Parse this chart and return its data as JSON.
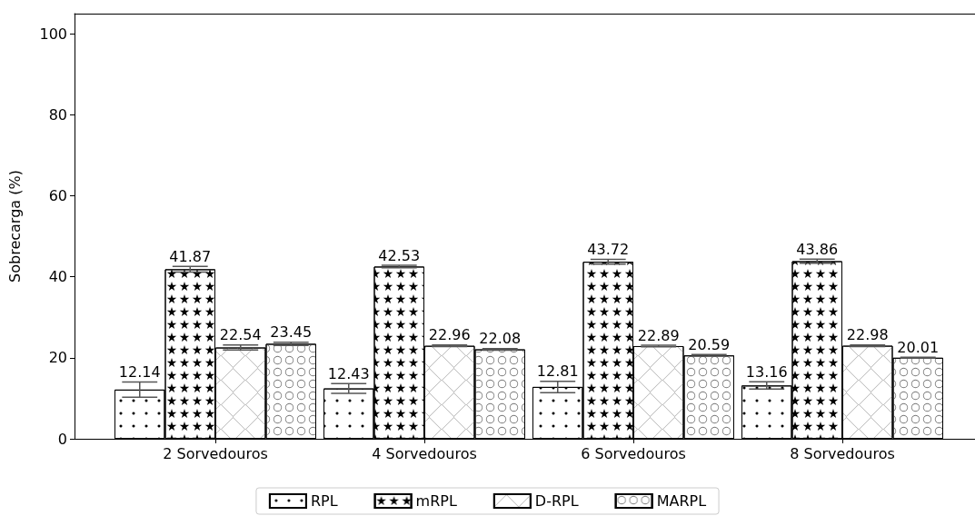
{
  "chart_data": {
    "type": "bar",
    "ylabel": "Sobrecarga (%)",
    "categories": [
      "2 Sorvedouros",
      "4 Sorvedouros",
      "6 Sorvedouros",
      "8 Sorvedouros"
    ],
    "series": [
      {
        "name": "RPL",
        "color": "#ffffff",
        "values": [
          12.14,
          12.43,
          12.81,
          13.16
        ],
        "errors": [
          1.9,
          1.2,
          1.4,
          0.9
        ]
      },
      {
        "name": "mRPL",
        "color": "#ffffff",
        "values": [
          41.87,
          42.53,
          43.72,
          43.86
        ],
        "errors": [
          0.7,
          0.3,
          0.6,
          0.5
        ]
      },
      {
        "name": "D-RPL",
        "color": "#ffffff",
        "values": [
          22.54,
          22.96,
          22.89,
          22.98
        ],
        "errors": [
          0.6,
          0.2,
          0.2,
          0.2
        ]
      },
      {
        "name": "MARPL",
        "color": "#ffffff",
        "values": [
          23.45,
          22.08,
          20.59,
          20.01
        ],
        "errors": [
          0.4,
          0.2,
          0.2,
          0.1
        ]
      }
    ],
    "ylim": [
      0,
      105
    ],
    "yticks": [
      0,
      20,
      40,
      60,
      80,
      100
    ],
    "data_labels": true,
    "grid": false,
    "legend": "bottom"
  }
}
